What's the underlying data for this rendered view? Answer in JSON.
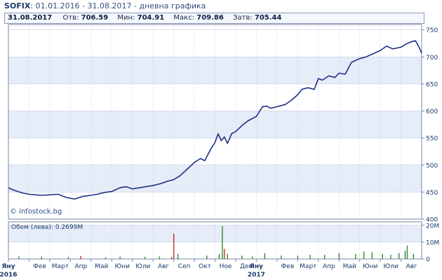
{
  "header": {
    "symbol": "SOFIX",
    "subtitle": "01.01.2016 - 31.08.2017 - дневна графика"
  },
  "ohlc": {
    "date": "31.08.2017",
    "open_label": "Отв:",
    "open": "706.59",
    "low_label": "Мин:",
    "low": "704.91",
    "high_label": "Макс:",
    "high": "709.86",
    "close_label": "Затв:",
    "close": "705.44"
  },
  "watermark": "© infostock.bg",
  "volume_label": "Обем (лева): 0.2699M",
  "colors": {
    "price_line": "#1f2f86",
    "band": "#e6ecf8",
    "grid": "#b9c4da",
    "frame": "#7a8aa8",
    "axis_text": "#1a3a6b",
    "volume_up": "#2e8b2e",
    "volume_down": "#c0302a"
  },
  "chart_data": [
    {
      "type": "line",
      "name": "price",
      "yaxis_side": "right",
      "ylim": [
        400,
        760
      ],
      "yticks": [
        400,
        450,
        500,
        550,
        600,
        650,
        700,
        750
      ],
      "x_month_labels": [
        "Яну",
        "Фев",
        "Март",
        "Апр",
        "Май",
        "Юни",
        "Юли",
        "Авг",
        "Сеп",
        "Окт",
        "Ное",
        "Дек",
        "Яну",
        "Фев",
        "Март",
        "Апр",
        "Май",
        "Юни",
        "Юли",
        "Авг"
      ],
      "year_labels": [
        {
          "label": "2016",
          "month_index": 0
        },
        {
          "label": "2017",
          "month_index": 12
        }
      ],
      "x": [
        0,
        0.3,
        0.7,
        1.0,
        1.3,
        1.6,
        2.0,
        2.4,
        2.8,
        3.2,
        3.6,
        4.0,
        4.3,
        4.6,
        5.0,
        5.4,
        5.7,
        6.0,
        6.5,
        7.0,
        7.4,
        7.7,
        8.0,
        8.3,
        8.7,
        9.0,
        9.3,
        9.5,
        9.8,
        10.0,
        10.15,
        10.3,
        10.45,
        10.6,
        10.8,
        11.0,
        11.3,
        11.6,
        12.0,
        12.3,
        12.5,
        12.7,
        13.0,
        13.4,
        13.7,
        14.0,
        14.2,
        14.5,
        14.8,
        15.0,
        15.2,
        15.5,
        15.8,
        16.0,
        16.3,
        16.6,
        17.0,
        17.3,
        17.6,
        18.0,
        18.3,
        18.6,
        19.0,
        19.3,
        19.5,
        19.7,
        19.85,
        20.0
      ],
      "values": [
        458,
        453,
        448,
        446,
        445,
        444,
        445,
        446,
        440,
        437,
        442,
        444,
        446,
        449,
        451,
        458,
        460,
        456,
        459,
        462,
        466,
        470,
        473,
        480,
        494,
        505,
        512,
        508,
        530,
        542,
        558,
        545,
        552,
        540,
        558,
        562,
        573,
        582,
        590,
        608,
        609,
        605,
        608,
        612,
        620,
        630,
        640,
        643,
        640,
        660,
        657,
        665,
        662,
        670,
        668,
        690,
        697,
        700,
        705,
        712,
        720,
        715,
        718,
        725,
        728,
        730,
        720,
        707
      ]
    },
    {
      "type": "bar",
      "name": "volume",
      "ylim": [
        0,
        22
      ],
      "yticks": [
        0,
        10,
        20
      ],
      "ytick_labels": [
        "0",
        "10M",
        "20M"
      ],
      "unit": "M",
      "x": [
        0.5,
        1.6,
        2.9,
        3.5,
        4.7,
        5.4,
        6.6,
        7.3,
        7.9,
        8.0,
        8.2,
        9.6,
        10.2,
        10.35,
        10.45,
        10.6,
        11.3,
        11.8,
        12.4,
        13.2,
        14.0,
        14.6,
        15.3,
        16.0,
        16.8,
        17.2,
        17.6,
        18.1,
        18.5,
        18.9,
        19.2,
        19.3,
        19.6
      ],
      "values": [
        1.5,
        1.5,
        1.2,
        1.8,
        1.0,
        1.5,
        1.3,
        1.5,
        1.3,
        15.0,
        3.0,
        2.0,
        3.0,
        19.5,
        6.0,
        3.0,
        2.0,
        1.5,
        3.5,
        2.0,
        2.0,
        2.5,
        2.5,
        3.5,
        3.0,
        4.5,
        4.0,
        3.0,
        2.5,
        3.5,
        5.0,
        8.0,
        3.0
      ],
      "directions": [
        "up",
        "up",
        "up",
        "down",
        "up",
        "up",
        "up",
        "up",
        "up",
        "down",
        "up",
        "up",
        "up",
        "up",
        "down",
        "up",
        "up",
        "up",
        "up",
        "up",
        "up",
        "up",
        "up",
        "up",
        "up",
        "up",
        "up",
        "up",
        "up",
        "up",
        "up",
        "up",
        "up"
      ]
    }
  ]
}
